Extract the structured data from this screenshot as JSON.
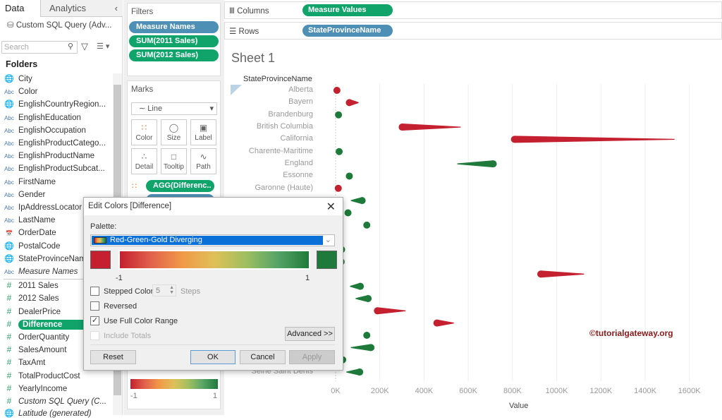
{
  "left": {
    "tabs": [
      "Data",
      "Analytics"
    ],
    "datasource": "Custom SQL Query (Adv...",
    "search_placeholder": "Search",
    "folders": "Folders",
    "fields": [
      {
        "icon": "globe",
        "label": "City"
      },
      {
        "icon": "abc",
        "label": "Color"
      },
      {
        "icon": "globe",
        "label": "EnglishCountryRegion..."
      },
      {
        "icon": "abc",
        "label": "EnglishEducation"
      },
      {
        "icon": "abc",
        "label": "EnglishOccupation"
      },
      {
        "icon": "abc",
        "label": "EnglishProductCatego..."
      },
      {
        "icon": "abc",
        "label": "EnglishProductName"
      },
      {
        "icon": "abc",
        "label": "EnglishProductSubcat..."
      },
      {
        "icon": "abc",
        "label": "FirstName"
      },
      {
        "icon": "abc",
        "label": "Gender"
      },
      {
        "icon": "abc",
        "label": "IpAddressLocator"
      },
      {
        "icon": "abc",
        "label": "LastName"
      },
      {
        "icon": "date",
        "label": "OrderDate"
      },
      {
        "icon": "globe",
        "label": "PostalCode"
      },
      {
        "icon": "globe",
        "label": "StateProvinceName"
      },
      {
        "icon": "abc",
        "label": "Measure Names",
        "italic": true
      },
      {
        "icon": "measure",
        "label": "2011 Sales"
      },
      {
        "icon": "measure",
        "label": "2012 Sales"
      },
      {
        "icon": "measure",
        "label": "DealerPrice"
      },
      {
        "icon": "measure",
        "label": "Difference",
        "selected": true
      },
      {
        "icon": "measure",
        "label": "OrderQuantity"
      },
      {
        "icon": "measure",
        "label": "SalesAmount"
      },
      {
        "icon": "measure",
        "label": "TaxAmt"
      },
      {
        "icon": "measure",
        "label": "TotalProductCost"
      },
      {
        "icon": "measure",
        "label": "YearlyIncome"
      },
      {
        "icon": "measure",
        "label": "Custom SQL Query (C...",
        "italic": true
      },
      {
        "icon": "globe",
        "label": "Latitude (generated)",
        "italic": true
      }
    ]
  },
  "filters": {
    "title": "Filters",
    "pills": [
      "Measure Names",
      "SUM(2011 Sales)",
      "SUM(2012 Sales)"
    ]
  },
  "marks": {
    "title": "Marks",
    "type": "Line",
    "buttons": [
      "Color",
      "Size",
      "Label",
      "Detail",
      "Tooltip",
      "Path"
    ],
    "color_pill": "AGG(Differenc.."
  },
  "legend": {
    "min": "-1",
    "max": "1"
  },
  "shelves": {
    "columns_label": "Columns",
    "columns_pill": "Measure Values",
    "rows_label": "Rows",
    "rows_pill": "StateProvinceName"
  },
  "sheet": {
    "title": "Sheet 1",
    "row_header": "StateProvinceName",
    "watermark": "©tutorialgateway.org"
  },
  "colors": {
    "red": "#c4202f",
    "green": "#1e7a3a"
  },
  "chart_data": {
    "type": "line",
    "xlabel": "Value",
    "xlim": [
      0,
      1600000
    ],
    "xticks": [
      "0K",
      "200K",
      "400K",
      "600K",
      "800K",
      "1000K",
      "1200K",
      "1400K",
      "1600K"
    ],
    "grid": true,
    "color_field": "Difference",
    "rows": [
      {
        "name": "Alberta",
        "s2011": 8000,
        "s2012": 6000
      },
      {
        "name": "Bayern",
        "s2011": 104000,
        "s2012": 62000
      },
      {
        "name": "Brandenburg",
        "s2011": 11000,
        "s2012": 13000
      },
      {
        "name": "British Columbia",
        "s2011": 566000,
        "s2012": 301000
      },
      {
        "name": "California",
        "s2011": 1533000,
        "s2012": 809000
      },
      {
        "name": "Charente-Maritime",
        "s2011": 14000,
        "s2012": 16000
      },
      {
        "name": "England",
        "s2011": 550000,
        "s2012": 713000
      },
      {
        "name": "Essonne",
        "s2011": 60000,
        "s2012": 62000
      },
      {
        "name": "Garonne (Haute)",
        "s2011": 14000,
        "s2012": 12000
      },
      {
        "name": "",
        "s2011": 69000,
        "s2012": 120000
      },
      {
        "name": "",
        "s2011": 40000,
        "s2012": 56000
      },
      {
        "name": "",
        "s2011": 125000,
        "s2012": 141000
      },
      {
        "name": "",
        "s2011": 8000,
        "s2012": 10000
      },
      {
        "name": "",
        "s2011": 25000,
        "s2012": 27000
      },
      {
        "name": "",
        "s2011": 23000,
        "s2012": 25000
      },
      {
        "name": "",
        "s2011": 1124000,
        "s2012": 928000
      },
      {
        "name": "",
        "s2011": 65000,
        "s2012": 112000
      },
      {
        "name": "",
        "s2011": 90000,
        "s2012": 147000
      },
      {
        "name": "",
        "s2011": 317000,
        "s2012": 189000
      },
      {
        "name": "",
        "s2011": 535000,
        "s2012": 458000
      },
      {
        "name": "",
        "s2011": 136000,
        "s2012": 141000
      },
      {
        "name": "",
        "s2011": 69000,
        "s2012": 160000
      },
      {
        "name": "",
        "s2011": 30000,
        "s2012": 32000
      },
      {
        "name": "Seine Saint Denis",
        "s2011": 48000,
        "s2012": 109000
      }
    ]
  },
  "dialog": {
    "title": "Edit Colors [Difference]",
    "palette_label": "Palette:",
    "palette": "Red-Green-Gold Diverging",
    "min": "-1",
    "max": "1",
    "stepped": "Stepped Color",
    "steps_value": "5",
    "steps": "Steps",
    "reversed": "Reversed",
    "full_range": "Use Full Color Range",
    "include_totals": "Include Totals",
    "advanced": "Advanced >>",
    "reset": "Reset",
    "ok": "OK",
    "cancel": "Cancel",
    "apply": "Apply",
    "stepped_checked": false,
    "reversed_checked": false,
    "full_range_checked": true
  }
}
